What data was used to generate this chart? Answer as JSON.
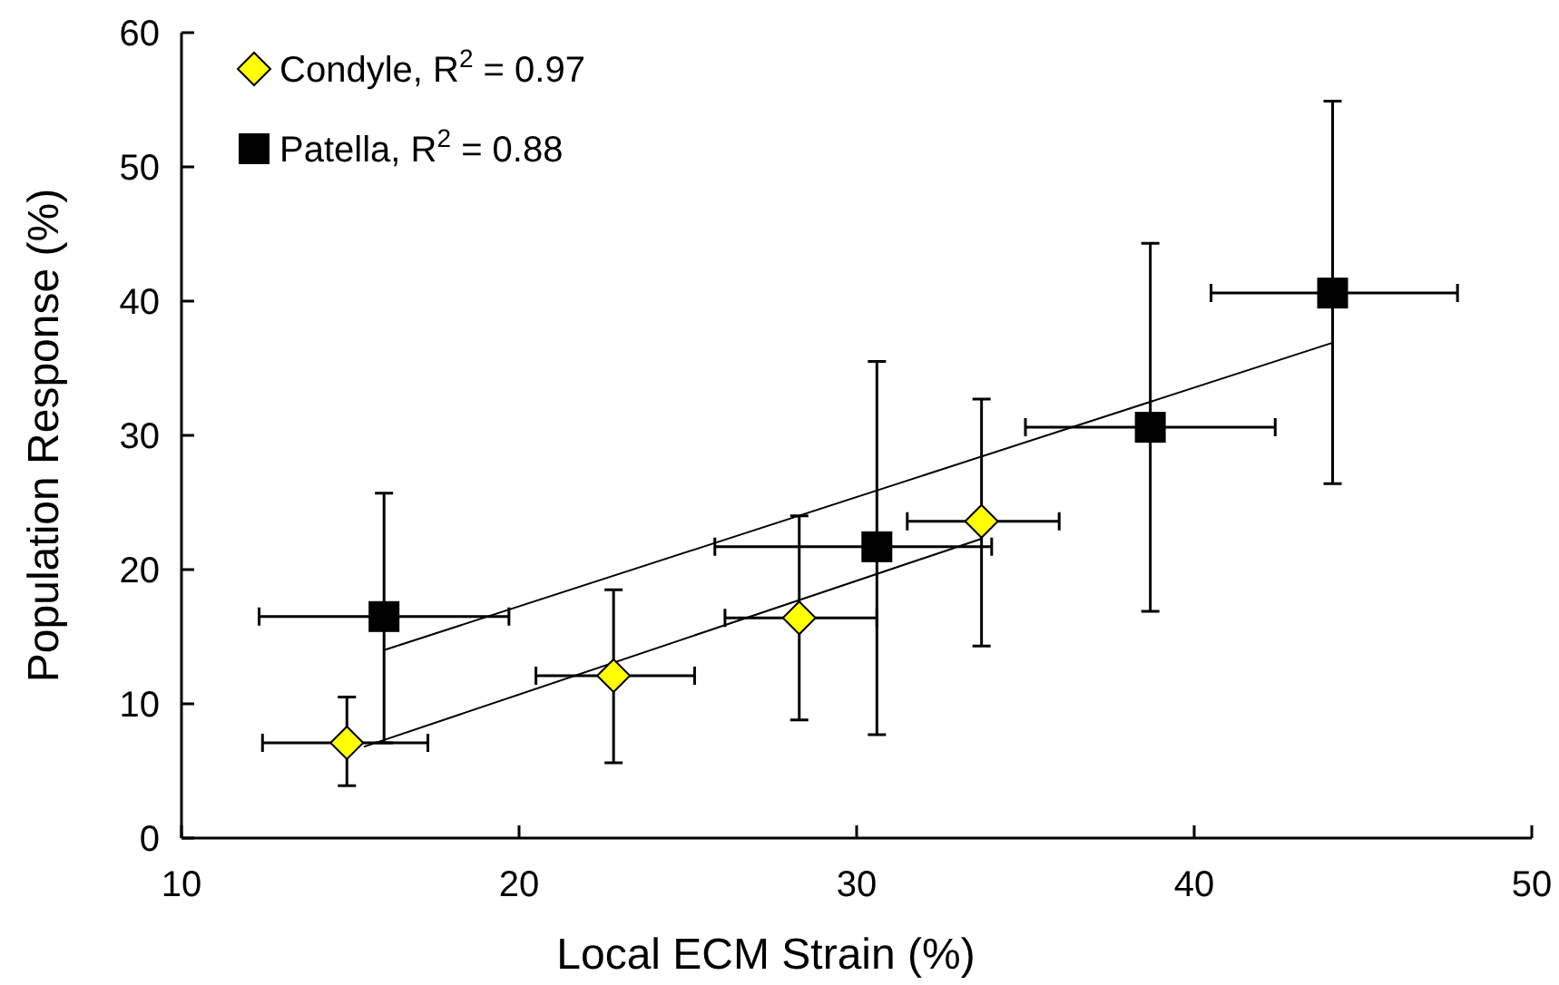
{
  "chart_data": {
    "type": "scatter",
    "xlabel": "Local ECM Strain (%)",
    "ylabel": "Population Response (%)",
    "xlim": [
      10,
      50
    ],
    "xticks": [
      10,
      20,
      30,
      40,
      50
    ],
    "ylim": [
      0,
      60
    ],
    "yticks": [
      0,
      10,
      20,
      30,
      40,
      50,
      60
    ],
    "grid": false,
    "legend": "top left",
    "series": [
      {
        "name": "Condyle, R$^{2}$ = 0.97",
        "color": "#ffff00",
        "marker": "diamond",
        "x": [
          14.9,
          22.8,
          28.3,
          33.7
        ],
        "values": [
          7.1,
          12.1,
          16.4,
          23.6
        ],
        "errors": [
          [
            3.9,
            10.5
          ],
          [
            5.6,
            18.5
          ],
          [
            8.8,
            24.0
          ],
          [
            14.3,
            32.7
          ]
        ],
        "xerrors": [
          [
            12.4,
            17.3
          ],
          [
            20.5,
            25.2
          ],
          [
            26.1,
            30.6
          ],
          [
            31.5,
            36.0
          ]
        ]
      },
      {
        "name": "Patella, R$^{2}$ = 0.88",
        "color": "#000000",
        "marker": "square",
        "x": [
          16.0,
          30.6,
          38.7,
          44.1
        ],
        "values": [
          16.5,
          21.7,
          30.6,
          40.6
        ],
        "errors": [
          [
            7.1,
            25.7
          ],
          [
            7.7,
            35.5
          ],
          [
            16.9,
            44.3
          ],
          [
            26.4,
            54.9
          ]
        ],
        "xerrors": [
          [
            12.3,
            19.7
          ],
          [
            25.8,
            34.0
          ],
          [
            35.0,
            42.4
          ],
          [
            40.5,
            47.8
          ]
        ]
      },
      {
        "type": "line",
        "color": "#000000",
        "x": [
          15.4,
          33.7
        ],
        "values": [
          6.8,
          22.3
        ]
      },
      {
        "type": "line",
        "color": "#000000",
        "x": [
          16.0,
          44.1
        ],
        "values": [
          14.0,
          36.9
        ]
      }
    ]
  }
}
